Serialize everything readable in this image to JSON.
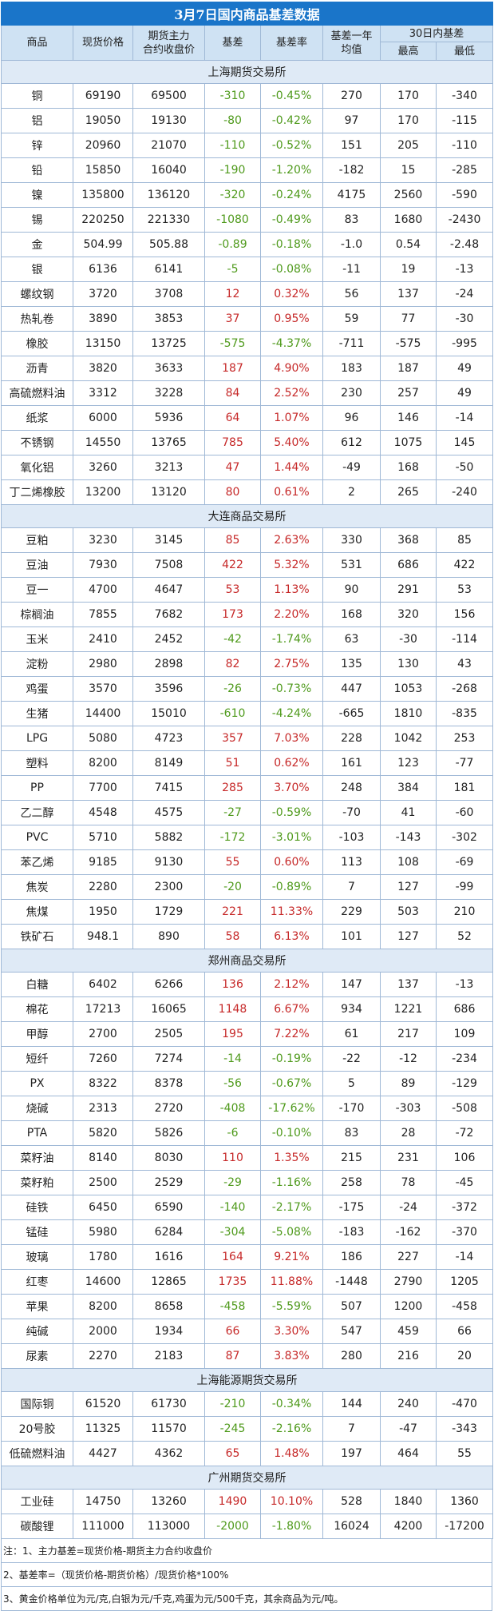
{
  "title": "3月7日国内商品基差数据",
  "headers": {
    "name": "商品",
    "spot": "现货价格",
    "futures_l1": "期货主力",
    "futures_l2": "合约收盘价",
    "basis": "基差",
    "basis_rate": "基差率",
    "year_avg_l1": "基差一年",
    "year_avg_l2": "均值",
    "range30": "30日内基差",
    "high": "最高",
    "low": "最低"
  },
  "sections": [
    {
      "name": "上海期货交易所",
      "rows": [
        {
          "name": "铜",
          "spot": "69190",
          "futures": "69500",
          "basis": "-310",
          "rate": "-0.45%",
          "avg": "270",
          "high": "170",
          "low": "-340"
        },
        {
          "name": "铝",
          "spot": "19050",
          "futures": "19130",
          "basis": "-80",
          "rate": "-0.42%",
          "avg": "97",
          "high": "170",
          "low": "-115"
        },
        {
          "name": "锌",
          "spot": "20960",
          "futures": "21070",
          "basis": "-110",
          "rate": "-0.52%",
          "avg": "151",
          "high": "205",
          "low": "-110"
        },
        {
          "name": "铅",
          "spot": "15850",
          "futures": "16040",
          "basis": "-190",
          "rate": "-1.20%",
          "avg": "-182",
          "high": "15",
          "low": "-285"
        },
        {
          "name": "镍",
          "spot": "135800",
          "futures": "136120",
          "basis": "-320",
          "rate": "-0.24%",
          "avg": "4175",
          "high": "2560",
          "low": "-590"
        },
        {
          "name": "锡",
          "spot": "220250",
          "futures": "221330",
          "basis": "-1080",
          "rate": "-0.49%",
          "avg": "83",
          "high": "1680",
          "low": "-2430"
        },
        {
          "name": "金",
          "spot": "504.99",
          "futures": "505.88",
          "basis": "-0.89",
          "rate": "-0.18%",
          "avg": "-1.0",
          "high": "0.54",
          "low": "-2.48"
        },
        {
          "name": "银",
          "spot": "6136",
          "futures": "6141",
          "basis": "-5",
          "rate": "-0.08%",
          "avg": "-11",
          "high": "19",
          "low": "-13"
        },
        {
          "name": "螺纹钢",
          "spot": "3720",
          "futures": "3708",
          "basis": "12",
          "rate": "0.32%",
          "avg": "56",
          "high": "137",
          "low": "-24"
        },
        {
          "name": "热轧卷",
          "spot": "3890",
          "futures": "3853",
          "basis": "37",
          "rate": "0.95%",
          "avg": "59",
          "high": "77",
          "low": "-30"
        },
        {
          "name": "橡胶",
          "spot": "13150",
          "futures": "13725",
          "basis": "-575",
          "rate": "-4.37%",
          "avg": "-711",
          "high": "-575",
          "low": "-995"
        },
        {
          "name": "沥青",
          "spot": "3820",
          "futures": "3633",
          "basis": "187",
          "rate": "4.90%",
          "avg": "183",
          "high": "187",
          "low": "49"
        },
        {
          "name": "高硫燃料油",
          "spot": "3312",
          "futures": "3228",
          "basis": "84",
          "rate": "2.52%",
          "avg": "230",
          "high": "257",
          "low": "49"
        },
        {
          "name": "纸浆",
          "spot": "6000",
          "futures": "5936",
          "basis": "64",
          "rate": "1.07%",
          "avg": "96",
          "high": "146",
          "low": "-14"
        },
        {
          "name": "不锈钢",
          "spot": "14550",
          "futures": "13765",
          "basis": "785",
          "rate": "5.40%",
          "avg": "612",
          "high": "1075",
          "low": "145"
        },
        {
          "name": "氧化铝",
          "spot": "3260",
          "futures": "3213",
          "basis": "47",
          "rate": "1.44%",
          "avg": "-49",
          "high": "168",
          "low": "-50"
        },
        {
          "name": "丁二烯橡胶",
          "spot": "13200",
          "futures": "13120",
          "basis": "80",
          "rate": "0.61%",
          "avg": "2",
          "high": "265",
          "low": "-240"
        }
      ]
    },
    {
      "name": "大连商品交易所",
      "rows": [
        {
          "name": "豆粕",
          "spot": "3230",
          "futures": "3145",
          "basis": "85",
          "rate": "2.63%",
          "avg": "330",
          "high": "368",
          "low": "85"
        },
        {
          "name": "豆油",
          "spot": "7930",
          "futures": "7508",
          "basis": "422",
          "rate": "5.32%",
          "avg": "531",
          "high": "686",
          "low": "422"
        },
        {
          "name": "豆一",
          "spot": "4700",
          "futures": "4647",
          "basis": "53",
          "rate": "1.13%",
          "avg": "90",
          "high": "291",
          "low": "53"
        },
        {
          "name": "棕榈油",
          "spot": "7855",
          "futures": "7682",
          "basis": "173",
          "rate": "2.20%",
          "avg": "168",
          "high": "320",
          "low": "156"
        },
        {
          "name": "玉米",
          "spot": "2410",
          "futures": "2452",
          "basis": "-42",
          "rate": "-1.74%",
          "avg": "63",
          "high": "-30",
          "low": "-114"
        },
        {
          "name": "淀粉",
          "spot": "2980",
          "futures": "2898",
          "basis": "82",
          "rate": "2.75%",
          "avg": "135",
          "high": "130",
          "low": "43"
        },
        {
          "name": "鸡蛋",
          "spot": "3570",
          "futures": "3596",
          "basis": "-26",
          "rate": "-0.73%",
          "avg": "447",
          "high": "1053",
          "low": "-268"
        },
        {
          "name": "生猪",
          "spot": "14400",
          "futures": "15010",
          "basis": "-610",
          "rate": "-4.24%",
          "avg": "-665",
          "high": "1810",
          "low": "-835"
        },
        {
          "name": "LPG",
          "spot": "5080",
          "futures": "4723",
          "basis": "357",
          "rate": "7.03%",
          "avg": "228",
          "high": "1042",
          "low": "253"
        },
        {
          "name": "塑料",
          "spot": "8200",
          "futures": "8149",
          "basis": "51",
          "rate": "0.62%",
          "avg": "161",
          "high": "123",
          "low": "-77"
        },
        {
          "name": "PP",
          "spot": "7700",
          "futures": "7415",
          "basis": "285",
          "rate": "3.70%",
          "avg": "248",
          "high": "384",
          "low": "181"
        },
        {
          "name": "乙二醇",
          "spot": "4548",
          "futures": "4575",
          "basis": "-27",
          "rate": "-0.59%",
          "avg": "-70",
          "high": "41",
          "low": "-60"
        },
        {
          "name": "PVC",
          "spot": "5710",
          "futures": "5882",
          "basis": "-172",
          "rate": "-3.01%",
          "avg": "-103",
          "high": "-143",
          "low": "-302"
        },
        {
          "name": "苯乙烯",
          "spot": "9185",
          "futures": "9130",
          "basis": "55",
          "rate": "0.60%",
          "avg": "113",
          "high": "108",
          "low": "-69"
        },
        {
          "name": "焦炭",
          "spot": "2280",
          "futures": "2300",
          "basis": "-20",
          "rate": "-0.89%",
          "avg": "7",
          "high": "127",
          "low": "-99"
        },
        {
          "name": "焦煤",
          "spot": "1950",
          "futures": "1729",
          "basis": "221",
          "rate": "11.33%",
          "avg": "229",
          "high": "503",
          "low": "210"
        },
        {
          "name": "铁矿石",
          "spot": "948.1",
          "futures": "890",
          "basis": "58",
          "rate": "6.13%",
          "avg": "101",
          "high": "127",
          "low": "52"
        }
      ]
    },
    {
      "name": "郑州商品交易所",
      "rows": [
        {
          "name": "白糖",
          "spot": "6402",
          "futures": "6266",
          "basis": "136",
          "rate": "2.12%",
          "avg": "147",
          "high": "137",
          "low": "-13"
        },
        {
          "name": "棉花",
          "spot": "17213",
          "futures": "16065",
          "basis": "1148",
          "rate": "6.67%",
          "avg": "934",
          "high": "1221",
          "low": "686"
        },
        {
          "name": "甲醇",
          "spot": "2700",
          "futures": "2505",
          "basis": "195",
          "rate": "7.22%",
          "avg": "61",
          "high": "217",
          "low": "109"
        },
        {
          "name": "短纤",
          "spot": "7260",
          "futures": "7274",
          "basis": "-14",
          "rate": "-0.19%",
          "avg": "-22",
          "high": "-12",
          "low": "-234"
        },
        {
          "name": "PX",
          "spot": "8322",
          "futures": "8378",
          "basis": "-56",
          "rate": "-0.67%",
          "avg": "5",
          "high": "89",
          "low": "-129"
        },
        {
          "name": "烧碱",
          "spot": "2313",
          "futures": "2720",
          "basis": "-408",
          "rate": "-17.62%",
          "avg": "-170",
          "high": "-303",
          "low": "-508"
        },
        {
          "name": "PTA",
          "spot": "5820",
          "futures": "5826",
          "basis": "-6",
          "rate": "-0.10%",
          "avg": "83",
          "high": "28",
          "low": "-72"
        },
        {
          "name": "菜籽油",
          "spot": "8140",
          "futures": "8030",
          "basis": "110",
          "rate": "1.35%",
          "avg": "215",
          "high": "231",
          "low": "106"
        },
        {
          "name": "菜籽粕",
          "spot": "2500",
          "futures": "2529",
          "basis": "-29",
          "rate": "-1.16%",
          "avg": "258",
          "high": "78",
          "low": "-45"
        },
        {
          "name": "硅铁",
          "spot": "6450",
          "futures": "6590",
          "basis": "-140",
          "rate": "-2.17%",
          "avg": "-175",
          "high": "-24",
          "low": "-372"
        },
        {
          "name": "锰硅",
          "spot": "5980",
          "futures": "6284",
          "basis": "-304",
          "rate": "-5.08%",
          "avg": "-183",
          "high": "-162",
          "low": "-370"
        },
        {
          "name": "玻璃",
          "spot": "1780",
          "futures": "1616",
          "basis": "164",
          "rate": "9.21%",
          "avg": "186",
          "high": "227",
          "low": "-14"
        },
        {
          "name": "红枣",
          "spot": "14600",
          "futures": "12865",
          "basis": "1735",
          "rate": "11.88%",
          "avg": "-1448",
          "high": "2790",
          "low": "1205"
        },
        {
          "name": "苹果",
          "spot": "8200",
          "futures": "8658",
          "basis": "-458",
          "rate": "-5.59%",
          "avg": "507",
          "high": "1200",
          "low": "-458"
        },
        {
          "name": "纯碱",
          "spot": "2000",
          "futures": "1934",
          "basis": "66",
          "rate": "3.30%",
          "avg": "547",
          "high": "459",
          "low": "66"
        },
        {
          "name": "尿素",
          "spot": "2270",
          "futures": "2183",
          "basis": "87",
          "rate": "3.83%",
          "avg": "280",
          "high": "216",
          "low": "20"
        }
      ]
    },
    {
      "name": "上海能源期货交易所",
      "rows": [
        {
          "name": "国际铜",
          "spot": "61520",
          "futures": "61730",
          "basis": "-210",
          "rate": "-0.34%",
          "avg": "144",
          "high": "240",
          "low": "-470"
        },
        {
          "name": "20号胶",
          "spot": "11325",
          "futures": "11570",
          "basis": "-245",
          "rate": "-2.16%",
          "avg": "7",
          "high": "-47",
          "low": "-343"
        },
        {
          "name": "低硫燃料油",
          "spot": "4427",
          "futures": "4362",
          "basis": "65",
          "rate": "1.48%",
          "avg": "197",
          "high": "464",
          "low": "55"
        }
      ]
    },
    {
      "name": "广州期货交易所",
      "rows": [
        {
          "name": "工业硅",
          "spot": "14750",
          "futures": "13260",
          "basis": "1490",
          "rate": "10.10%",
          "avg": "528",
          "high": "1840",
          "low": "1360"
        },
        {
          "name": "碳酸锂",
          "spot": "111000",
          "futures": "113000",
          "basis": "-2000",
          "rate": "-1.80%",
          "avg": "16024",
          "high": "4200",
          "low": "-17200"
        }
      ]
    }
  ],
  "notes": [
    "注：1、主力基差=现货价格-期货主力合约收盘价",
    "2、基差率=（现货价格-期货价格）/现货价格*100%",
    "3、黄金价格单位为元/克,白银为元/千克,鸡蛋为元/500千克，其余商品为元/吨。"
  ],
  "colors": {
    "title_bg": "#1a75c9",
    "header_bg": "#cfe2f3",
    "section_bg": "#dfeaf6",
    "negative": "#4f9a1c",
    "positive": "#c62828",
    "border": "#9fb8d6"
  }
}
